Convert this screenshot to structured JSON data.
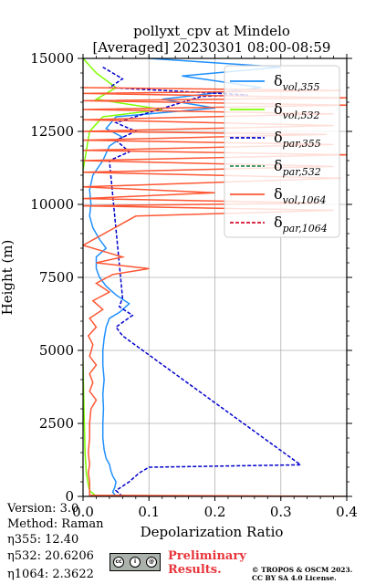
{
  "chart_data": {
    "type": "line",
    "title": "pollyxt_cpv at Mindelo",
    "subtitle": "[Averaged] 20230301 08:00-08:59",
    "xlabel": "Depolarization Ratio",
    "ylabel": "Height (m)",
    "xlim": [
      0,
      0.4
    ],
    "ylim": [
      0,
      15000
    ],
    "x_ticks": [
      "0.0",
      "0.1",
      "0.2",
      "0.3",
      "0.4"
    ],
    "y_ticks": [
      "0",
      "2500",
      "5000",
      "7500",
      "10000",
      "12500",
      "15000"
    ],
    "grid": true,
    "legend_position": "top-right",
    "series": [
      {
        "name": "δvol,355",
        "color": "#1e90ff",
        "style": "solid",
        "points": [
          [
            0.05,
            0
          ],
          [
            0.045,
            150
          ],
          [
            0.048,
            300
          ],
          [
            0.05,
            500
          ],
          [
            0.045,
            700
          ],
          [
            0.042,
            900
          ],
          [
            0.04,
            1100
          ],
          [
            0.035,
            1300
          ],
          [
            0.032,
            1600
          ],
          [
            0.03,
            2000
          ],
          [
            0.03,
            2500
          ],
          [
            0.031,
            3000
          ],
          [
            0.03,
            3500
          ],
          [
            0.032,
            4000
          ],
          [
            0.03,
            4500
          ],
          [
            0.03,
            5000
          ],
          [
            0.032,
            5400
          ],
          [
            0.035,
            5800
          ],
          [
            0.04,
            6100
          ],
          [
            0.055,
            6300
          ],
          [
            0.07,
            6600
          ],
          [
            0.05,
            6900
          ],
          [
            0.035,
            7200
          ],
          [
            0.025,
            7500
          ],
          [
            0.02,
            7800
          ],
          [
            0.02,
            8200
          ],
          [
            0.035,
            8500
          ],
          [
            0.025,
            8800
          ],
          [
            0.015,
            9200
          ],
          [
            0.01,
            9600
          ],
          [
            0.012,
            10000
          ],
          [
            0.01,
            10500
          ],
          [
            0.015,
            11000
          ],
          [
            0.03,
            11500
          ],
          [
            0.04,
            12000
          ],
          [
            0.06,
            12300
          ],
          [
            0.035,
            12600
          ],
          [
            0.05,
            13000
          ],
          [
            0.2,
            13300
          ],
          [
            0.12,
            13600
          ],
          [
            0.27,
            14000
          ],
          [
            0.15,
            14400
          ],
          [
            0.3,
            14700
          ],
          [
            0.1,
            15000
          ]
        ]
      },
      {
        "name": "δvol,532",
        "color": "#7fff00",
        "style": "solid",
        "points": [
          [
            0.02,
            0
          ],
          [
            0.01,
            200
          ],
          [
            0.008,
            400
          ],
          [
            0.005,
            800
          ],
          [
            0.003,
            1500
          ],
          [
            0.002,
            2500
          ],
          [
            0.001,
            3500
          ],
          [
            0.0,
            4500
          ],
          [
            -0.002,
            5500
          ],
          [
            -0.005,
            6500
          ],
          [
            -0.003,
            7500
          ],
          [
            -0.005,
            9000
          ],
          [
            -0.005,
            10500
          ],
          [
            0.01,
            12500
          ],
          [
            0.03,
            13000
          ],
          [
            0.12,
            13250
          ],
          [
            0.02,
            13600
          ],
          [
            0.05,
            14000
          ],
          [
            0.02,
            14500
          ],
          [
            0.0,
            15000
          ]
        ]
      },
      {
        "name": "δpar,355",
        "color": "#0000cd",
        "style": "dashed",
        "points": [
          [
            0.06,
            0
          ],
          [
            0.05,
            200
          ],
          [
            0.07,
            500
          ],
          [
            0.085,
            800
          ],
          [
            0.1,
            1000
          ],
          [
            0.33,
            1080
          ],
          [
            0.06,
            5500
          ],
          [
            0.05,
            5800
          ],
          [
            0.075,
            6200
          ],
          [
            0.055,
            6500
          ],
          [
            0.06,
            6800
          ],
          [
            0.04,
            11500
          ],
          [
            0.07,
            11800
          ],
          [
            0.05,
            12200
          ],
          [
            0.08,
            12500
          ],
          [
            0.05,
            12800
          ],
          [
            0.18,
            13700
          ],
          [
            0.25,
            13750
          ],
          [
            0.04,
            14000
          ],
          [
            0.06,
            14300
          ],
          [
            0.03,
            14700
          ]
        ]
      },
      {
        "name": "δpar,532",
        "color": "#2e8b57",
        "style": "dashed",
        "points": []
      },
      {
        "name": "δvol,1064",
        "color": "#ff5733",
        "style": "solid",
        "points": [
          [
            0.4,
            0
          ],
          [
            0.01,
            40
          ],
          [
            0.01,
            200
          ],
          [
            0.01,
            500
          ],
          [
            0.008,
            800
          ],
          [
            0.01,
            1100
          ],
          [
            0.008,
            1500
          ],
          [
            0.01,
            2000
          ],
          [
            0.01,
            2500
          ],
          [
            0.012,
            3000
          ],
          [
            0.02,
            3300
          ],
          [
            0.01,
            3600
          ],
          [
            0.015,
            3900
          ],
          [
            0.01,
            4200
          ],
          [
            0.02,
            4500
          ],
          [
            0.01,
            4800
          ],
          [
            0.015,
            5200
          ],
          [
            0.008,
            5500
          ],
          [
            0.02,
            5800
          ],
          [
            0.01,
            6100
          ],
          [
            0.03,
            6400
          ],
          [
            0.015,
            6700
          ],
          [
            0.04,
            7000
          ],
          [
            0.02,
            7300
          ],
          [
            0.045,
            7600
          ],
          [
            0.1,
            7800
          ],
          [
            0.02,
            8000
          ],
          [
            0.06,
            8200
          ],
          [
            0.0,
            8600
          ],
          [
            0.08,
            9600
          ],
          [
            0.38,
            9800
          ],
          [
            0.0,
            9950
          ],
          [
            0.36,
            10050
          ],
          [
            0.0,
            10200
          ],
          [
            0.2,
            10400
          ],
          [
            0.0,
            10600
          ],
          [
            0.39,
            10900
          ],
          [
            0.0,
            11100
          ],
          [
            0.38,
            11300
          ],
          [
            0.0,
            11500
          ],
          [
            0.4,
            11700
          ],
          [
            0.0,
            11850
          ],
          [
            0.38,
            12050
          ],
          [
            0.0,
            12200
          ],
          [
            0.37,
            12400
          ],
          [
            0.0,
            12500
          ],
          [
            0.38,
            12700
          ],
          [
            0.0,
            12900
          ],
          [
            0.38,
            13100
          ],
          [
            0.0,
            13250
          ],
          [
            0.4,
            13400
          ],
          [
            0.0,
            13550
          ],
          [
            0.4,
            13650
          ],
          [
            0.0,
            13800
          ],
          [
            0.39,
            13900
          ],
          [
            0.0,
            14000
          ]
        ]
      },
      {
        "name": "δpar,1064",
        "color": "#d2122e",
        "style": "dashed",
        "points": []
      }
    ],
    "legend": [
      {
        "base": "δ",
        "sub": "vol,355",
        "color": "#1e90ff",
        "style": "solid"
      },
      {
        "base": "δ",
        "sub": "vol,532",
        "color": "#7fff00",
        "style": "solid"
      },
      {
        "base": "δ",
        "sub": "par,355",
        "color": "#0000cd",
        "style": "dashed"
      },
      {
        "base": "δ",
        "sub": "par,532",
        "color": "#2e8b57",
        "style": "dashed"
      },
      {
        "base": "δ",
        "sub": "vol,1064",
        "color": "#ff5733",
        "style": "solid"
      },
      {
        "base": "δ",
        "sub": "par,1064",
        "color": "#d2122e",
        "style": "dashed"
      }
    ]
  },
  "info": {
    "version": "Version: 3.0",
    "method": "Method: Raman",
    "eta355": "η355:  12.40",
    "eta532": "η532: 20.6206",
    "eta1064": "η1064: 2.3622"
  },
  "footer": {
    "preliminary_line1": "Preliminary",
    "preliminary_line2": "Results.",
    "copyright_line1": "© TROPOS & OSCM 2023.",
    "copyright_line2": "CC BY SA 4.0 License.",
    "cc_badge": "cc by sa"
  }
}
